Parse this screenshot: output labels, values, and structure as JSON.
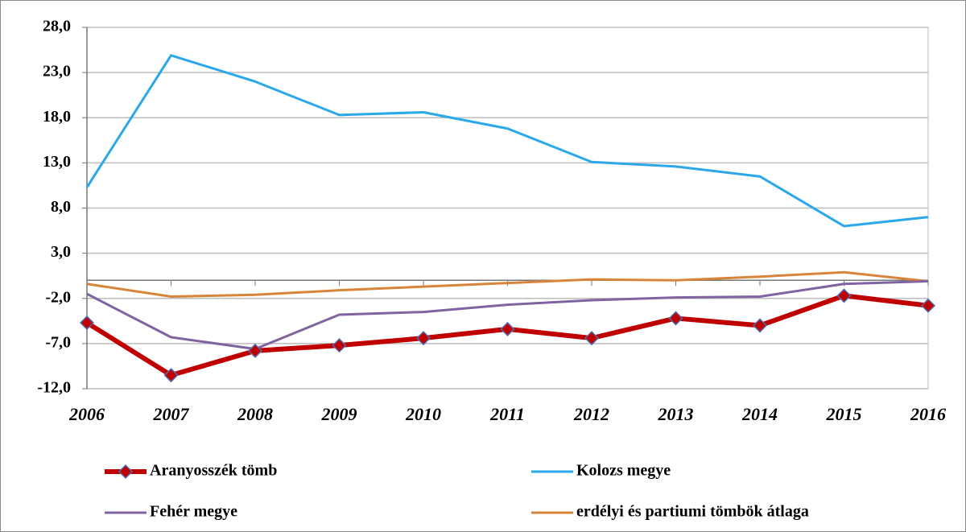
{
  "chart_data": {
    "type": "line",
    "categories": [
      "2006",
      "2007",
      "2008",
      "2009",
      "2010",
      "2011",
      "2012",
      "2013",
      "2014",
      "2015",
      "2016"
    ],
    "series": [
      {
        "name": "Aranyosszék tömb",
        "color": "#c00000",
        "marker": "diamond",
        "values": [
          -4.7,
          -10.5,
          -7.8,
          -7.2,
          -6.4,
          -5.4,
          -6.4,
          -4.2,
          -5.0,
          -1.7,
          -2.8
        ]
      },
      {
        "name": "Kolozs megye",
        "color": "#2aa8ea",
        "values": [
          10.3,
          24.9,
          22.0,
          18.3,
          18.6,
          16.8,
          13.1,
          12.6,
          11.5,
          6.0,
          7.0
        ]
      },
      {
        "name": "Fehér megye",
        "color": "#8064a2",
        "values": [
          -1.5,
          -6.3,
          -7.6,
          -3.8,
          -3.5,
          -2.7,
          -2.2,
          -1.9,
          -1.8,
          -0.4,
          -0.1
        ]
      },
      {
        "name": "erdélyi és partiumi tömbök átlaga",
        "color": "#d9843b",
        "values": [
          -0.4,
          -1.8,
          -1.6,
          -1.1,
          -0.7,
          -0.3,
          0.1,
          0.0,
          0.4,
          0.9,
          -0.1
        ]
      }
    ],
    "ylim": [
      -12,
      28
    ],
    "yticks": [
      {
        "value": -12,
        "label": "-12,0"
      },
      {
        "value": -7,
        "label": "-7,0"
      },
      {
        "value": -2,
        "label": "-2,0"
      },
      {
        "value": 3,
        "label": "3,0"
      },
      {
        "value": 8,
        "label": "8,0"
      },
      {
        "value": 13,
        "label": "13,0"
      },
      {
        "value": 18,
        "label": "18,0"
      },
      {
        "value": 23,
        "label": "23,0"
      },
      {
        "value": 28,
        "label": "28,0"
      }
    ],
    "grid": true,
    "legend": "bottom"
  }
}
